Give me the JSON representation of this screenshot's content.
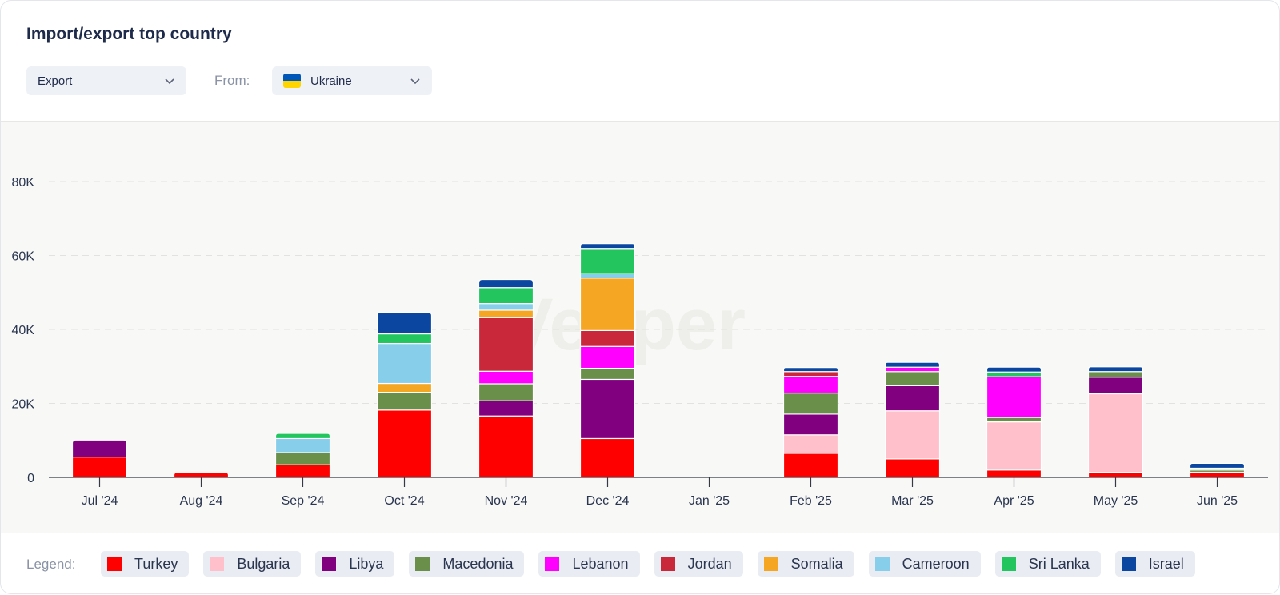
{
  "header": {
    "title": "Import/export top country"
  },
  "controls": {
    "mode": {
      "value": "Export"
    },
    "from_label": "From:",
    "country": {
      "value": "Ukraine",
      "flag_icon": "ukraine-flag-icon"
    }
  },
  "watermark": {
    "text": "Vesper"
  },
  "legend": {
    "label": "Legend:",
    "items": [
      {
        "name": "Turkey",
        "color": "#ff0000"
      },
      {
        "name": "Bulgaria",
        "color": "#ffc0cb"
      },
      {
        "name": "Libya",
        "color": "#800080"
      },
      {
        "name": "Macedonia",
        "color": "#6a8f4a"
      },
      {
        "name": "Lebanon",
        "color": "#ff00ff"
      },
      {
        "name": "Jordan",
        "color": "#c8283a"
      },
      {
        "name": "Somalia",
        "color": "#f5a623"
      },
      {
        "name": "Cameroon",
        "color": "#87ceeb"
      },
      {
        "name": "Sri Lanka",
        "color": "#22c55e"
      },
      {
        "name": "Israel",
        "color": "#0b47a1"
      }
    ]
  },
  "chart_data": {
    "type": "bar",
    "stacked": true,
    "categories": [
      "Jul '24",
      "Aug '24",
      "Sep '24",
      "Oct '24",
      "Nov '24",
      "Dec '24",
      "Jan '25",
      "Feb '25",
      "Mar '25",
      "Apr '25",
      "May '25",
      "Jun '25"
    ],
    "ylim": [
      0,
      80000
    ],
    "yticks": [
      0,
      20000,
      40000,
      60000,
      80000
    ],
    "ytick_labels": [
      "0",
      "20K",
      "40K",
      "60K",
      "80K"
    ],
    "grid": true,
    "legend_position": "bottom",
    "series": [
      {
        "name": "Turkey",
        "values": [
          5500,
          1300,
          3400,
          18200,
          16600,
          10500,
          0,
          6500,
          5000,
          2000,
          1400,
          1400
        ]
      },
      {
        "name": "Bulgaria",
        "values": [
          0,
          0,
          0,
          0,
          0,
          0,
          0,
          5000,
          13000,
          13000,
          21200,
          0
        ]
      },
      {
        "name": "Libya",
        "values": [
          4600,
          0,
          0,
          0,
          4100,
          16000,
          0,
          5600,
          6800,
          0,
          4500,
          0
        ]
      },
      {
        "name": "Macedonia",
        "values": [
          0,
          0,
          3300,
          4800,
          4600,
          3000,
          0,
          5700,
          3800,
          1200,
          1500,
          600
        ]
      },
      {
        "name": "Lebanon",
        "values": [
          0,
          0,
          0,
          0,
          3400,
          5900,
          0,
          4500,
          1200,
          11000,
          0,
          0
        ]
      },
      {
        "name": "Jordan",
        "values": [
          0,
          0,
          0,
          0,
          14500,
          4300,
          0,
          1300,
          0,
          0,
          0,
          0
        ]
      },
      {
        "name": "Somalia",
        "values": [
          0,
          0,
          0,
          2400,
          2000,
          14200,
          0,
          0,
          0,
          0,
          0,
          0
        ]
      },
      {
        "name": "Cameroon",
        "values": [
          0,
          0,
          3800,
          10800,
          1800,
          1200,
          0,
          0,
          0,
          0,
          0,
          0
        ]
      },
      {
        "name": "Sri Lanka",
        "values": [
          0,
          0,
          1400,
          2600,
          4300,
          6800,
          0,
          0,
          0,
          1300,
          0,
          500
        ]
      },
      {
        "name": "Israel",
        "values": [
          0,
          0,
          0,
          5800,
          2200,
          1300,
          0,
          1100,
          1300,
          1300,
          1300,
          1300
        ]
      }
    ]
  }
}
